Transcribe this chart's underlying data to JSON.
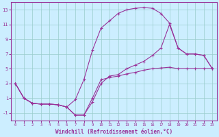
{
  "title": "",
  "xlabel": "Windchill (Refroidissement éolien,°C)",
  "ylabel": "",
  "background_color": "#cceeff",
  "line_color": "#993399",
  "grid_color": "#99cccc",
  "xlim": [
    -0.5,
    23.5
  ],
  "ylim": [
    -2,
    14
  ],
  "xticks": [
    0,
    1,
    2,
    3,
    4,
    5,
    6,
    7,
    8,
    9,
    10,
    11,
    12,
    13,
    14,
    15,
    16,
    17,
    18,
    19,
    20,
    21,
    22,
    23
  ],
  "yticks": [
    -1,
    1,
    3,
    5,
    7,
    9,
    11,
    13
  ],
  "line1_x": [
    0,
    1,
    2,
    3,
    4,
    5,
    6,
    7,
    8,
    9,
    10,
    11,
    12,
    13,
    14,
    15,
    16,
    17,
    18,
    19,
    20,
    21,
    22,
    23
  ],
  "line1_y": [
    3,
    1,
    0.3,
    0.2,
    0.2,
    0.1,
    -0.2,
    -1.3,
    -1.3,
    1.0,
    3.5,
    3.8,
    4.0,
    4.3,
    4.5,
    4.8,
    5.0,
    5.1,
    5.2,
    5.0,
    5.0,
    5.0,
    5.0,
    5.0
  ],
  "line2_x": [
    0,
    1,
    2,
    3,
    4,
    5,
    6,
    7,
    8,
    9,
    10,
    11,
    12,
    13,
    14,
    15,
    16,
    17,
    18,
    19,
    20,
    21,
    22,
    23
  ],
  "line2_y": [
    3,
    1,
    0.3,
    0.2,
    0.2,
    0.1,
    -0.2,
    0.8,
    3.5,
    7.5,
    10.5,
    11.5,
    12.5,
    13.0,
    13.2,
    13.3,
    13.2,
    12.5,
    11.2,
    7.8,
    7.0,
    7.0,
    6.8,
    5.0
  ],
  "line3_x": [
    0,
    1,
    2,
    3,
    4,
    5,
    6,
    7,
    8,
    9,
    10,
    11,
    12,
    13,
    14,
    15,
    16,
    17,
    18,
    19,
    20,
    21,
    22,
    23
  ],
  "line3_y": [
    3,
    1,
    0.3,
    0.2,
    0.2,
    0.1,
    -0.2,
    -1.3,
    -1.3,
    0.5,
    3.0,
    4.0,
    4.2,
    5.0,
    5.5,
    6.0,
    6.8,
    7.8,
    11.0,
    7.8,
    7.0,
    7.0,
    6.8,
    5.0
  ]
}
